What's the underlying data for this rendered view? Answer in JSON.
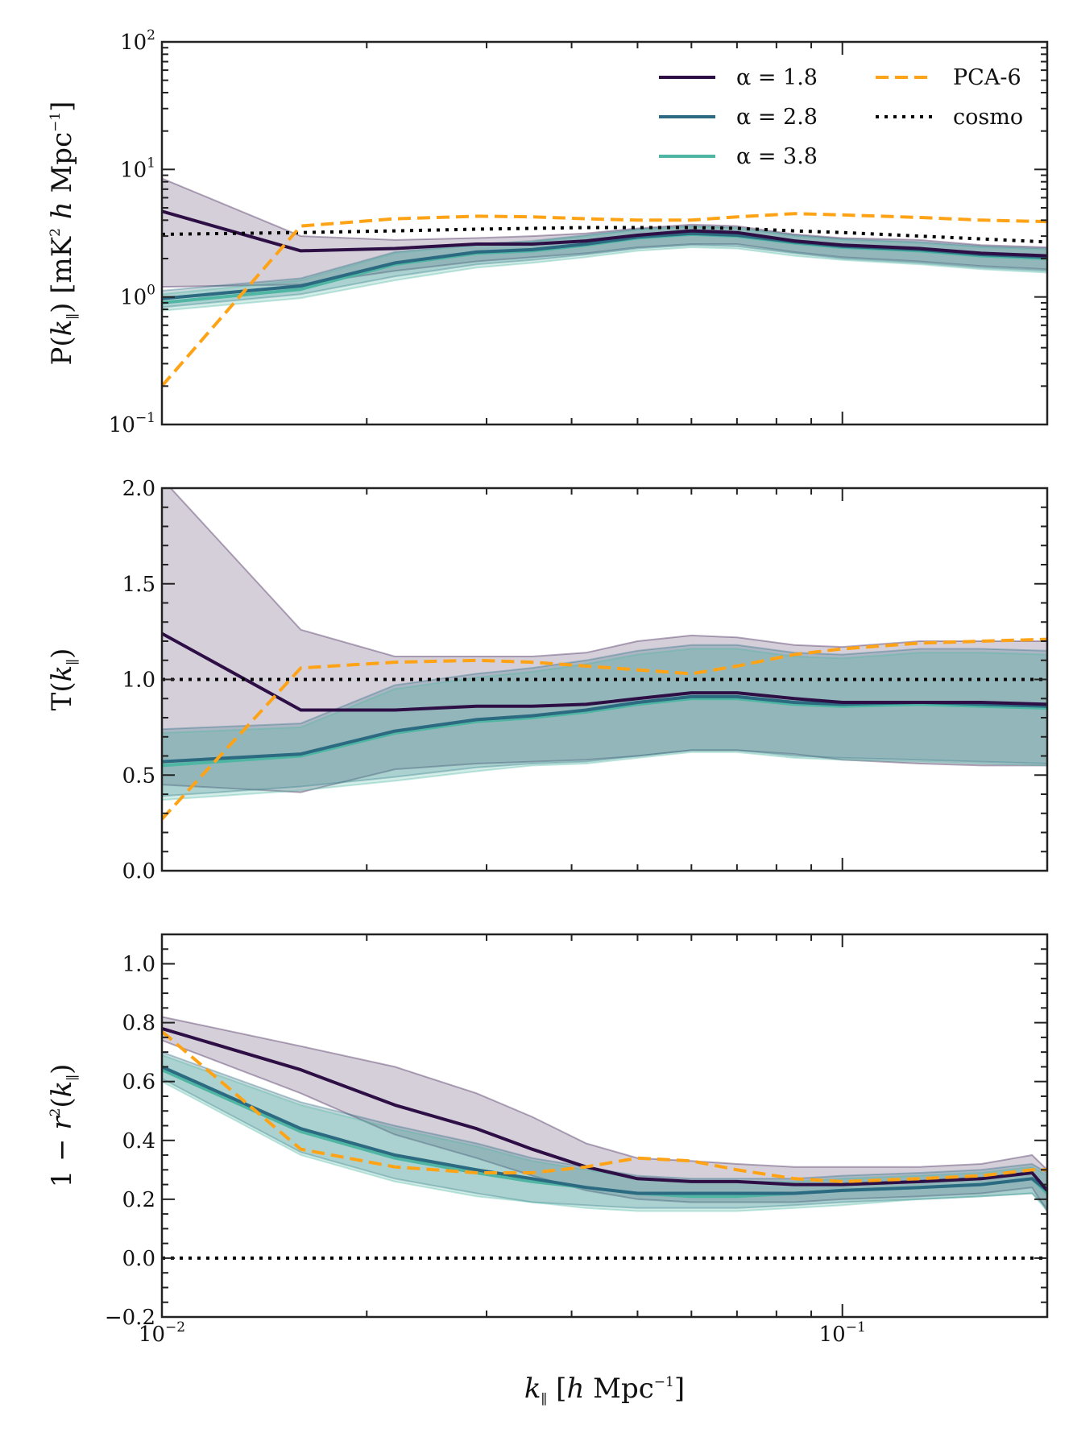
{
  "figure": {
    "xlabel": {
      "k": "k",
      "sub": "∥",
      "rest": " [",
      "h": "h",
      "unit": " Mpc",
      "exp": "−1",
      "close": "]"
    },
    "xticks": [
      {
        "base": "10",
        "exp": "−2",
        "value": 0.01
      },
      {
        "base": "10",
        "exp": "−1",
        "value": 0.1
      }
    ],
    "colors": {
      "alpha_1_8": "#2d0f45",
      "alpha_2_8": "#2b6a80",
      "alpha_3_8": "#4fb6a4",
      "pca6": "#ffa316",
      "cosmo": "#000000"
    },
    "legend": {
      "entries": [
        {
          "key": "a18",
          "label": "α = 1.8",
          "style": "solid"
        },
        {
          "key": "a28",
          "label": "α = 2.8",
          "style": "solid"
        },
        {
          "key": "a38",
          "label": "α = 3.8",
          "style": "solid"
        },
        {
          "key": "pca",
          "label": "PCA-6",
          "style": "dashed"
        },
        {
          "key": "cosmo",
          "label": "cosmo",
          "style": "dotted"
        }
      ]
    }
  },
  "chart_data": [
    {
      "type": "line",
      "id": "power",
      "yscale": "log",
      "ylabel": {
        "pre": "P(",
        "k": "k",
        "sub": "∥",
        "post": ") [mK",
        "sq": "2",
        "h": " h",
        "unit": " Mpc",
        "exp": "−1",
        "close": "]"
      },
      "xlim": [
        0.01,
        0.2
      ],
      "ylim": [
        0.1,
        100
      ],
      "yticks": [
        {
          "base": "10",
          "exp": "−1",
          "value": 0.1
        },
        {
          "base": "10",
          "exp": "0",
          "value": 1
        },
        {
          "base": "10",
          "exp": "1",
          "value": 10
        },
        {
          "base": "10",
          "exp": "2",
          "value": 100
        }
      ],
      "x": [
        0.01,
        0.016,
        0.022,
        0.029,
        0.035,
        0.042,
        0.05,
        0.06,
        0.07,
        0.085,
        0.1,
        0.13,
        0.16,
        0.2
      ],
      "series": [
        {
          "name": "α = 1.8",
          "key": "a18",
          "values": [
            4.7,
            2.3,
            2.4,
            2.6,
            2.6,
            2.75,
            3.05,
            3.3,
            3.2,
            2.75,
            2.55,
            2.4,
            2.2,
            2.1
          ],
          "lower": [
            1.2,
            1.25,
            1.6,
            1.9,
            2.05,
            2.2,
            2.45,
            2.6,
            2.6,
            2.25,
            2.05,
            1.9,
            1.75,
            1.65
          ],
          "upper": [
            8.5,
            3.0,
            2.8,
            2.9,
            3.0,
            3.15,
            3.45,
            3.7,
            3.6,
            3.1,
            2.9,
            2.8,
            2.55,
            2.45
          ]
        },
        {
          "name": "α = 2.8",
          "key": "a28",
          "values": [
            0.97,
            1.22,
            1.85,
            2.25,
            2.35,
            2.6,
            2.95,
            3.15,
            3.05,
            2.7,
            2.5,
            2.35,
            2.15,
            2.05
          ],
          "lower": [
            0.83,
            1.05,
            1.45,
            1.8,
            1.95,
            2.15,
            2.4,
            2.55,
            2.5,
            2.2,
            2.0,
            1.85,
            1.7,
            1.6
          ],
          "upper": [
            1.12,
            1.4,
            2.25,
            2.6,
            2.75,
            3.05,
            3.4,
            3.6,
            3.5,
            3.05,
            2.85,
            2.7,
            2.5,
            2.4
          ]
        },
        {
          "name": "α = 3.8",
          "key": "a38",
          "values": [
            0.9,
            1.15,
            1.8,
            2.2,
            2.3,
            2.55,
            2.9,
            3.1,
            3.0,
            2.65,
            2.45,
            2.3,
            2.1,
            2.0
          ],
          "lower": [
            0.78,
            0.98,
            1.35,
            1.7,
            1.85,
            2.05,
            2.3,
            2.45,
            2.4,
            2.1,
            1.95,
            1.8,
            1.65,
            1.55
          ],
          "upper": [
            1.05,
            1.35,
            2.2,
            2.55,
            2.7,
            3.0,
            3.35,
            3.55,
            3.45,
            3.0,
            2.8,
            2.65,
            2.45,
            2.35
          ]
        },
        {
          "name": "PCA-6",
          "key": "pca",
          "values": [
            0.2,
            3.6,
            4.1,
            4.3,
            4.25,
            4.1,
            4.0,
            4.0,
            4.25,
            4.5,
            4.4,
            4.2,
            4.0,
            3.9
          ]
        },
        {
          "name": "cosmo",
          "key": "cosmo",
          "values": [
            3.1,
            3.2,
            3.3,
            3.4,
            3.45,
            3.5,
            3.5,
            3.5,
            3.45,
            3.3,
            3.2,
            3.0,
            2.85,
            2.7
          ]
        }
      ]
    },
    {
      "type": "line",
      "id": "transfer",
      "yscale": "linear",
      "ylabel": {
        "pre": "T(",
        "k": "k",
        "sub": "∥",
        "post": ")"
      },
      "xlim": [
        0.01,
        0.2
      ],
      "ylim": [
        0.0,
        2.0
      ],
      "yticks": [
        {
          "label": "0.0",
          "value": 0.0
        },
        {
          "label": "0.5",
          "value": 0.5
        },
        {
          "label": "1.0",
          "value": 1.0
        },
        {
          "label": "1.5",
          "value": 1.5
        },
        {
          "label": "2.0",
          "value": 2.0
        }
      ],
      "x": [
        0.01,
        0.016,
        0.022,
        0.029,
        0.035,
        0.042,
        0.05,
        0.06,
        0.07,
        0.085,
        0.1,
        0.13,
        0.16,
        0.2
      ],
      "series": [
        {
          "name": "α = 1.8",
          "key": "a18",
          "values": [
            1.24,
            0.84,
            0.84,
            0.86,
            0.86,
            0.87,
            0.9,
            0.93,
            0.93,
            0.9,
            0.88,
            0.88,
            0.88,
            0.87
          ],
          "lower": [
            0.45,
            0.41,
            0.53,
            0.56,
            0.57,
            0.58,
            0.6,
            0.63,
            0.63,
            0.61,
            0.58,
            0.56,
            0.55,
            0.55
          ],
          "upper": [
            2.05,
            1.26,
            1.12,
            1.12,
            1.12,
            1.14,
            1.2,
            1.23,
            1.22,
            1.18,
            1.17,
            1.2,
            1.2,
            1.2
          ]
        },
        {
          "name": "α = 2.8",
          "key": "a28",
          "values": [
            0.57,
            0.61,
            0.73,
            0.79,
            0.81,
            0.84,
            0.88,
            0.91,
            0.91,
            0.88,
            0.87,
            0.88,
            0.87,
            0.86
          ],
          "lower": [
            0.39,
            0.44,
            0.49,
            0.54,
            0.56,
            0.57,
            0.6,
            0.63,
            0.63,
            0.6,
            0.59,
            0.58,
            0.57,
            0.56
          ],
          "upper": [
            0.74,
            0.77,
            0.97,
            1.03,
            1.06,
            1.1,
            1.15,
            1.18,
            1.18,
            1.14,
            1.13,
            1.16,
            1.16,
            1.15
          ]
        },
        {
          "name": "α = 3.8",
          "key": "a38",
          "values": [
            0.55,
            0.6,
            0.72,
            0.78,
            0.8,
            0.83,
            0.87,
            0.9,
            0.9,
            0.87,
            0.86,
            0.87,
            0.86,
            0.85
          ],
          "lower": [
            0.37,
            0.42,
            0.47,
            0.52,
            0.55,
            0.56,
            0.59,
            0.62,
            0.62,
            0.59,
            0.58,
            0.57,
            0.56,
            0.55
          ],
          "upper": [
            0.72,
            0.75,
            0.95,
            1.01,
            1.04,
            1.08,
            1.13,
            1.16,
            1.16,
            1.12,
            1.11,
            1.14,
            1.14,
            1.13
          ]
        },
        {
          "name": "PCA-6",
          "key": "pca",
          "values": [
            0.27,
            1.06,
            1.09,
            1.1,
            1.09,
            1.07,
            1.05,
            1.03,
            1.07,
            1.13,
            1.16,
            1.19,
            1.2,
            1.21
          ]
        },
        {
          "name": "cosmo",
          "key": "cosmo",
          "values": [
            1.0,
            1.0,
            1.0,
            1.0,
            1.0,
            1.0,
            1.0,
            1.0,
            1.0,
            1.0,
            1.0,
            1.0,
            1.0,
            1.0
          ]
        }
      ]
    },
    {
      "type": "line",
      "id": "decorrelation",
      "yscale": "linear",
      "ylabel": {
        "pre": "1 − ",
        "r": "r",
        "sq": "2",
        "mid": "(",
        "k": "k",
        "sub": "∥",
        "post": ")"
      },
      "xlim": [
        0.01,
        0.2
      ],
      "ylim": [
        -0.2,
        1.1
      ],
      "yticks": [
        {
          "label": "−0.2",
          "value": -0.2
        },
        {
          "label": "0.0",
          "value": 0.0
        },
        {
          "label": "0.2",
          "value": 0.2
        },
        {
          "label": "0.4",
          "value": 0.4
        },
        {
          "label": "0.6",
          "value": 0.6
        },
        {
          "label": "0.8",
          "value": 0.8
        },
        {
          "label": "1.0",
          "value": 1.0
        }
      ],
      "x": [
        0.01,
        0.016,
        0.022,
        0.029,
        0.035,
        0.042,
        0.05,
        0.06,
        0.07,
        0.085,
        0.1,
        0.13,
        0.16,
        0.19,
        0.2
      ],
      "series": [
        {
          "name": "α = 1.8",
          "key": "a18",
          "values": [
            0.78,
            0.64,
            0.52,
            0.44,
            0.37,
            0.31,
            0.27,
            0.26,
            0.26,
            0.25,
            0.25,
            0.26,
            0.27,
            0.29,
            0.23
          ],
          "lower": [
            0.74,
            0.56,
            0.42,
            0.34,
            0.28,
            0.23,
            0.2,
            0.19,
            0.19,
            0.19,
            0.2,
            0.21,
            0.22,
            0.24,
            0.16
          ],
          "upper": [
            0.82,
            0.72,
            0.65,
            0.56,
            0.48,
            0.39,
            0.34,
            0.33,
            0.32,
            0.31,
            0.31,
            0.31,
            0.32,
            0.35,
            0.3
          ]
        },
        {
          "name": "α = 2.8",
          "key": "a28",
          "values": [
            0.65,
            0.44,
            0.35,
            0.3,
            0.27,
            0.24,
            0.22,
            0.22,
            0.22,
            0.22,
            0.23,
            0.24,
            0.25,
            0.27,
            0.23
          ],
          "lower": [
            0.61,
            0.36,
            0.27,
            0.22,
            0.19,
            0.18,
            0.17,
            0.17,
            0.17,
            0.18,
            0.19,
            0.2,
            0.21,
            0.22,
            0.17
          ],
          "upper": [
            0.7,
            0.53,
            0.45,
            0.39,
            0.34,
            0.31,
            0.28,
            0.27,
            0.27,
            0.27,
            0.28,
            0.29,
            0.3,
            0.32,
            0.29
          ]
        },
        {
          "name": "α = 3.8",
          "key": "a38",
          "values": [
            0.64,
            0.43,
            0.34,
            0.29,
            0.26,
            0.24,
            0.22,
            0.21,
            0.21,
            0.22,
            0.23,
            0.24,
            0.25,
            0.27,
            0.22
          ],
          "lower": [
            0.6,
            0.35,
            0.26,
            0.21,
            0.19,
            0.17,
            0.16,
            0.16,
            0.16,
            0.17,
            0.18,
            0.2,
            0.21,
            0.22,
            0.16
          ],
          "upper": [
            0.69,
            0.52,
            0.44,
            0.38,
            0.33,
            0.3,
            0.27,
            0.26,
            0.26,
            0.26,
            0.27,
            0.28,
            0.29,
            0.31,
            0.28
          ]
        },
        {
          "name": "PCA-6",
          "key": "pca",
          "values": [
            0.77,
            0.37,
            0.31,
            0.29,
            0.29,
            0.31,
            0.34,
            0.33,
            0.3,
            0.27,
            0.26,
            0.27,
            0.28,
            0.3,
            0.3
          ]
        },
        {
          "name": "cosmo",
          "key": "cosmo",
          "values": [
            0.0,
            0.0,
            0.0,
            0.0,
            0.0,
            0.0,
            0.0,
            0.0,
            0.0,
            0.0,
            0.0,
            0.0,
            0.0,
            0.0,
            0.0
          ]
        }
      ]
    }
  ]
}
